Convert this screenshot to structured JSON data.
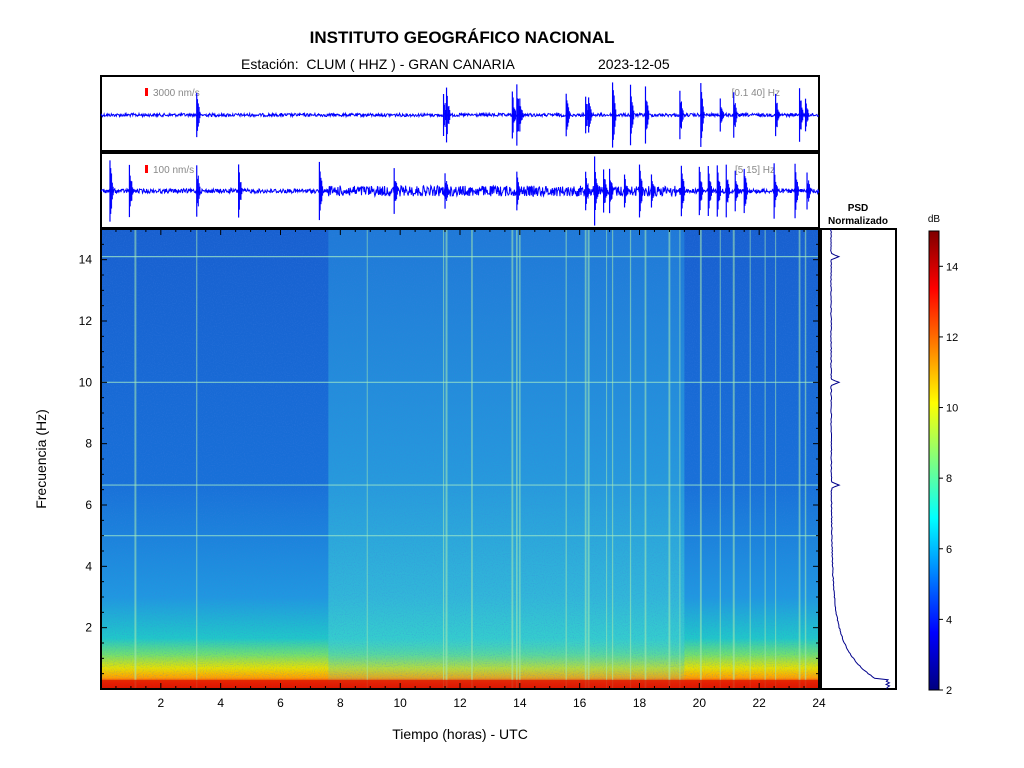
{
  "header": {
    "title": "INSTITUTO GEOGRÁFICO NACIONAL",
    "station_text": "Estación:  CLUM ( HHZ ) - GRAN CANARIA",
    "date": "2023-12-05"
  },
  "colors": {
    "trace": "#0000ff",
    "scale_marker": "#ff0000",
    "psd_line": "#00008b",
    "frame": "#000000"
  },
  "chart_data": [
    {
      "type": "line",
      "name": "waveform-broadband",
      "scale_label": "3000 nm/s",
      "filter_label": "[0.1 40] Hz",
      "xlim": [
        0,
        24
      ],
      "events_hours": [
        3.2,
        11.45,
        11.55,
        13.75,
        13.9,
        14.0,
        15.55,
        16.2,
        16.3,
        17.1,
        17.7,
        18.2,
        19.35,
        20.05,
        20.7,
        21.15,
        22.55,
        23.35,
        23.55
      ]
    },
    {
      "type": "line",
      "name": "waveform-lowfreq",
      "scale_label": "100 nm/s",
      "filter_label": "[5 15] Hz",
      "xlim": [
        0,
        24
      ],
      "events_hours": [
        0.3,
        0.95,
        3.2,
        4.6,
        7.3,
        9.8,
        11.5,
        13.9,
        16.2,
        16.5,
        16.8,
        17.0,
        17.5,
        18.0,
        18.4,
        19.4,
        20.0,
        20.3,
        20.6,
        20.9,
        21.2,
        21.5,
        22.5,
        23.2,
        23.6
      ]
    },
    {
      "type": "heatmap",
      "name": "spectrogram",
      "xlabel": "Tiempo (horas) - UTC",
      "ylabel": "Frecuencia  (Hz)",
      "xlim": [
        0,
        24
      ],
      "ylim": [
        0,
        15
      ],
      "xticks": [
        2,
        4,
        6,
        8,
        10,
        12,
        14,
        16,
        18,
        20,
        22,
        24
      ],
      "yticks": [
        2,
        4,
        6,
        8,
        10,
        12,
        14
      ],
      "noise_bands_hz": [
        10.0,
        6.65,
        5.0,
        14.1
      ],
      "active_period_hours": [
        7.6,
        19.5
      ],
      "colormap": "jet"
    },
    {
      "type": "line",
      "name": "psd-normalized",
      "title_line1": "PSD",
      "title_line2": "Normalizado",
      "peaks_hz": [
        10.0,
        6.65,
        14.1
      ],
      "ylim": [
        0,
        15
      ]
    }
  ],
  "colorbar": {
    "label": "dB",
    "range": [
      2,
      15
    ],
    "ticks": [
      2,
      4,
      6,
      8,
      10,
      12,
      14
    ]
  }
}
